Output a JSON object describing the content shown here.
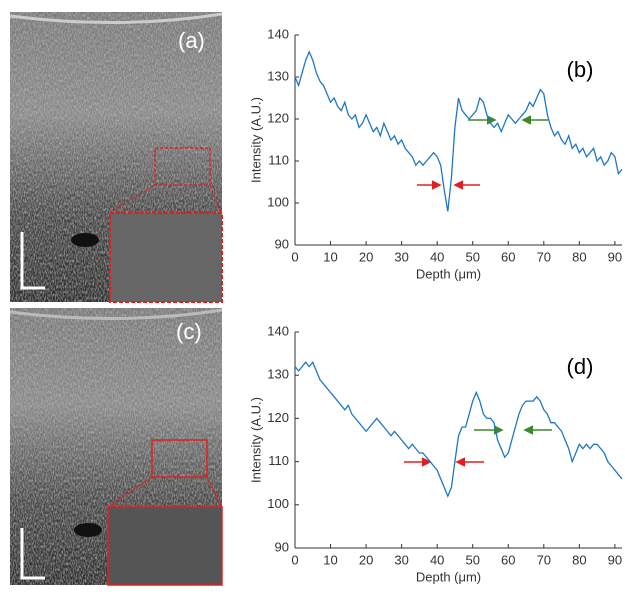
{
  "panels": [
    {
      "label": "(a)"
    },
    {
      "label": "(c)"
    }
  ],
  "chart_data": [
    {
      "type": "line",
      "label": "(b)",
      "xlabel": "Depth (μm)",
      "ylabel": "Intensity (A.U.)",
      "color": "#1f77c4",
      "x": [
        0,
        1,
        2,
        3,
        4,
        5,
        6,
        7,
        8,
        9,
        10,
        11,
        12,
        13,
        14,
        15,
        16,
        17,
        18,
        19,
        20,
        21,
        22,
        23,
        24,
        25,
        26,
        27,
        28,
        29,
        30,
        31,
        32,
        33,
        34,
        35,
        36,
        37,
        38,
        39,
        40,
        41,
        42,
        43,
        44,
        45,
        46,
        47,
        48,
        49,
        50,
        51,
        52,
        53,
        54,
        55,
        56,
        57,
        58,
        59,
        60,
        61,
        62,
        63,
        64,
        65,
        66,
        67,
        68,
        69,
        70,
        71,
        72,
        73,
        74,
        75,
        76,
        77,
        78,
        79,
        80,
        81,
        82,
        83,
        84,
        85,
        86,
        87,
        88,
        89,
        90,
        91,
        92
      ],
      "values": [
        130,
        128,
        131,
        134,
        136,
        134,
        131,
        129,
        128,
        126,
        124,
        125,
        123,
        122,
        124,
        121,
        120,
        121,
        118,
        119,
        121,
        119,
        117,
        118,
        116,
        119,
        117,
        115,
        116,
        114,
        115,
        113,
        112,
        111,
        109,
        110,
        109,
        110,
        111,
        112,
        111,
        109,
        103,
        98,
        106,
        118,
        125,
        122,
        121,
        120,
        121,
        122,
        125,
        124,
        121,
        119,
        118,
        119,
        117,
        119,
        121,
        120,
        119,
        120,
        121,
        122,
        124,
        123,
        125,
        127,
        126,
        121,
        118,
        116,
        117,
        115,
        114,
        116,
        113,
        114,
        112,
        113,
        111,
        112,
        113,
        110,
        111,
        109,
        110,
        112,
        111,
        107,
        108
      ],
      "xlim": [
        0,
        92
      ],
      "ylim": [
        90,
        140
      ],
      "xticks": [
        0,
        10,
        20,
        30,
        40,
        50,
        60,
        70,
        80,
        90
      ],
      "yticks": [
        90,
        100,
        110,
        120,
        130,
        140
      ]
    },
    {
      "type": "line",
      "label": "(d)",
      "xlabel": "Depth (μm)",
      "ylabel": "Intensity (A.U.)",
      "color": "#1f77c4",
      "x": [
        0,
        1,
        2,
        3,
        4,
        5,
        6,
        7,
        8,
        9,
        10,
        11,
        12,
        13,
        14,
        15,
        16,
        17,
        18,
        19,
        20,
        21,
        22,
        23,
        24,
        25,
        26,
        27,
        28,
        29,
        30,
        31,
        32,
        33,
        34,
        35,
        36,
        37,
        38,
        39,
        40,
        41,
        42,
        43,
        44,
        45,
        46,
        47,
        48,
        49,
        50,
        51,
        52,
        53,
        54,
        55,
        56,
        57,
        58,
        59,
        60,
        61,
        62,
        63,
        64,
        65,
        66,
        67,
        68,
        69,
        70,
        71,
        72,
        73,
        74,
        75,
        76,
        77,
        78,
        79,
        80,
        81,
        82,
        83,
        84,
        85,
        86,
        87,
        88,
        89,
        90,
        91,
        92
      ],
      "values": [
        132,
        131,
        132,
        133,
        132,
        133,
        131,
        129,
        128,
        127,
        126,
        125,
        124,
        123,
        122,
        123,
        121,
        120,
        119,
        118,
        117,
        118,
        119,
        120,
        119,
        118,
        117,
        116,
        117,
        116,
        115,
        114,
        113,
        114,
        113,
        112,
        112,
        111,
        110,
        109,
        108,
        106,
        104,
        102,
        104,
        110,
        116,
        118,
        118,
        121,
        124,
        126,
        124,
        121,
        120,
        120,
        119,
        115,
        113,
        111,
        112,
        115,
        118,
        121,
        123,
        124,
        124,
        124,
        125,
        124,
        122,
        121,
        119,
        119,
        118,
        117,
        115,
        113,
        110,
        112,
        114,
        113,
        114,
        113,
        114,
        114,
        113,
        112,
        110,
        109,
        108,
        107,
        106
      ],
      "xlim": [
        0,
        92
      ],
      "ylim": [
        90,
        140
      ],
      "xticks": [
        0,
        10,
        20,
        30,
        40,
        50,
        60,
        70,
        80,
        90
      ],
      "yticks": [
        90,
        100,
        110,
        120,
        130,
        140
      ]
    }
  ]
}
